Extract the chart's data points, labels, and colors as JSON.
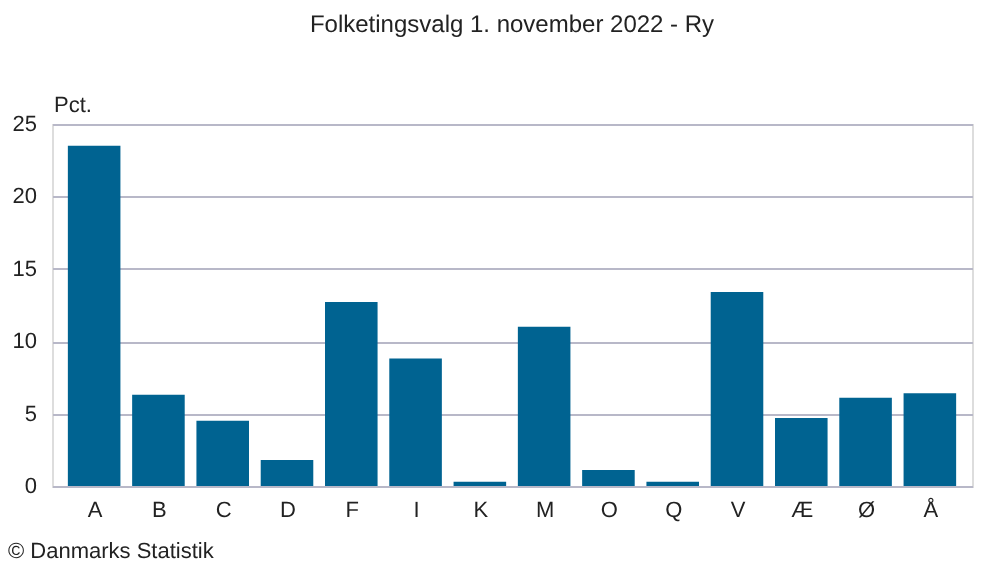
{
  "chart_data": {
    "type": "bar",
    "title": "Folketingsvalg 1. november 2022 - Ry",
    "ylabel": "Pct.",
    "categories": [
      "A",
      "B",
      "C",
      "D",
      "F",
      "I",
      "K",
      "M",
      "O",
      "Q",
      "V",
      "Æ",
      "Ø",
      "Å"
    ],
    "values": [
      23.5,
      6.3,
      4.5,
      1.8,
      12.7,
      8.8,
      0.3,
      11.0,
      1.1,
      0.3,
      13.4,
      4.7,
      6.1,
      6.4
    ],
    "color": "#006391",
    "ylim": [
      0,
      25
    ],
    "yticks": [
      0,
      5,
      10,
      15,
      20,
      25
    ],
    "grid": "y",
    "annotations": [
      "© Danmarks Statistik"
    ]
  }
}
